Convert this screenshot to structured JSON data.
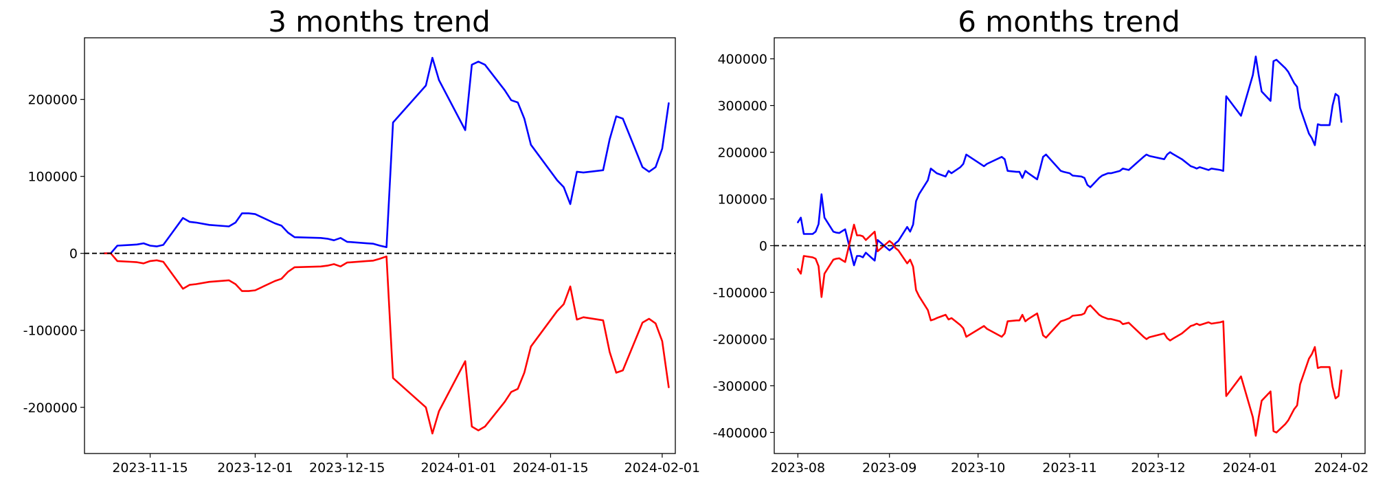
{
  "chart_data": [
    {
      "type": "line",
      "title": "3 months trend",
      "xlabel": "",
      "ylabel": "",
      "x_ticks": [
        "2023-11-15",
        "2023-12-01",
        "2023-12-15",
        "2024-01-01",
        "2024-01-15",
        "2024-02-01"
      ],
      "y_ticks": [
        -200000,
        -100000,
        0,
        100000,
        200000
      ],
      "xlim": [
        "2023-11-05",
        "2024-02-03"
      ],
      "ylim": [
        -260000,
        280000
      ],
      "baseline": 0,
      "grid": false,
      "series": [
        {
          "color": "#0000ff",
          "x": [
            "2023-11-08",
            "2023-11-09",
            "2023-11-10",
            "2023-11-12",
            "2023-11-13",
            "2023-11-14",
            "2023-11-15",
            "2023-11-16",
            "2023-11-17",
            "2023-11-20",
            "2023-11-21",
            "2023-11-22",
            "2023-11-24",
            "2023-11-27",
            "2023-11-28",
            "2023-11-29",
            "2023-11-30",
            "2023-12-01",
            "2023-12-04",
            "2023-12-05",
            "2023-12-06",
            "2023-12-07",
            "2023-12-11",
            "2023-12-12",
            "2023-12-13",
            "2023-12-14",
            "2023-12-15",
            "2023-12-18",
            "2023-12-19",
            "2023-12-20",
            "2023-12-21",
            "2023-12-22",
            "2023-12-27",
            "2023-12-28",
            "2023-12-29",
            "2024-01-02",
            "2024-01-03",
            "2024-01-04",
            "2024-01-05",
            "2024-01-08",
            "2024-01-09",
            "2024-01-10",
            "2024-01-11",
            "2024-01-12",
            "2024-01-16",
            "2024-01-17",
            "2024-01-18",
            "2024-01-19",
            "2024-01-20",
            "2024-01-23",
            "2024-01-24",
            "2024-01-25",
            "2024-01-26",
            "2024-01-29",
            "2024-01-30",
            "2024-01-31",
            "2024-02-01",
            "2024-02-02"
          ],
          "values": [
            0,
            0,
            10000,
            11000,
            11500,
            13000,
            10000,
            9000,
            11000,
            46000,
            41000,
            40000,
            37000,
            35000,
            40000,
            52000,
            52000,
            51000,
            39000,
            36000,
            27000,
            21000,
            20000,
            19000,
            17000,
            20000,
            15000,
            13000,
            12500,
            10000,
            8000,
            170000,
            218000,
            254000,
            225000,
            160000,
            245000,
            249000,
            245000,
            212000,
            199000,
            196000,
            175000,
            141000,
            95000,
            86000,
            64000,
            106000,
            105000,
            108000,
            148000,
            178000,
            175000,
            112000,
            106000,
            112000,
            136000,
            195000
          ]
        },
        {
          "color": "#ff0000",
          "x": [
            "2023-11-08",
            "2023-11-09",
            "2023-11-10",
            "2023-11-12",
            "2023-11-13",
            "2023-11-14",
            "2023-11-15",
            "2023-11-16",
            "2023-11-17",
            "2023-11-20",
            "2023-11-21",
            "2023-11-22",
            "2023-11-24",
            "2023-11-27",
            "2023-11-28",
            "2023-11-29",
            "2023-11-30",
            "2023-12-01",
            "2023-12-04",
            "2023-12-05",
            "2023-12-06",
            "2023-12-07",
            "2023-12-11",
            "2023-12-12",
            "2023-12-13",
            "2023-12-14",
            "2023-12-15",
            "2023-12-18",
            "2023-12-19",
            "2023-12-20",
            "2023-12-21",
            "2023-12-22",
            "2023-12-27",
            "2023-12-28",
            "2023-12-29",
            "2024-01-02",
            "2024-01-03",
            "2024-01-04",
            "2024-01-05",
            "2024-01-08",
            "2024-01-09",
            "2024-01-10",
            "2024-01-11",
            "2024-01-12",
            "2024-01-16",
            "2024-01-17",
            "2024-01-18",
            "2024-01-19",
            "2024-01-20",
            "2024-01-23",
            "2024-01-24",
            "2024-01-25",
            "2024-01-26",
            "2024-01-29",
            "2024-01-30",
            "2024-01-31",
            "2024-02-01",
            "2024-02-02"
          ],
          "values": [
            0,
            0,
            -10000,
            -11000,
            -11500,
            -13000,
            -10000,
            -9000,
            -11000,
            -46000,
            -41000,
            -40000,
            -37000,
            -35000,
            -40000,
            -49000,
            -49000,
            -48000,
            -36000,
            -33000,
            -24000,
            -18000,
            -17000,
            -16000,
            -14000,
            -17000,
            -12000,
            -10000,
            -9500,
            -7000,
            -4000,
            -162000,
            -200000,
            -234000,
            -205000,
            -140000,
            -225000,
            -230000,
            -225000,
            -193000,
            -180000,
            -176000,
            -155000,
            -121000,
            -75000,
            -66000,
            -43000,
            -86000,
            -83000,
            -87000,
            -128000,
            -155000,
            -152000,
            -90000,
            -85000,
            -91000,
            -114000,
            -174000
          ]
        }
      ]
    },
    {
      "type": "line",
      "title": "6 months trend",
      "xlabel": "",
      "ylabel": "",
      "x_ticks": [
        "2023-08",
        "2023-09",
        "2023-10",
        "2023-11",
        "2023-12",
        "2024-01",
        "2024-02"
      ],
      "y_ticks": [
        -400000,
        -300000,
        -200000,
        -100000,
        0,
        100000,
        200000,
        300000,
        400000
      ],
      "xlim": [
        "2023-07-24",
        "2024-02-09"
      ],
      "ylim": [
        -445000,
        445000
      ],
      "baseline": 0,
      "grid": false,
      "series": [
        {
          "color": "#0000ff",
          "x": [
            "2023-08-01",
            "2023-08-02",
            "2023-08-03",
            "2023-08-06",
            "2023-08-07",
            "2023-08-08",
            "2023-08-09",
            "2023-08-10",
            "2023-08-13",
            "2023-08-14",
            "2023-08-15",
            "2023-08-16",
            "2023-08-17",
            "2023-08-20",
            "2023-08-21",
            "2023-08-22",
            "2023-08-23",
            "2023-08-24",
            "2023-08-27",
            "2023-08-28",
            "2023-09-01",
            "2023-09-02",
            "2023-09-03",
            "2023-09-04",
            "2023-09-07",
            "2023-09-08",
            "2023-09-09",
            "2023-09-10",
            "2023-09-11",
            "2023-09-14",
            "2023-09-15",
            "2023-09-16",
            "2023-09-17",
            "2023-09-20",
            "2023-09-21",
            "2023-09-22",
            "2023-09-25",
            "2023-09-26",
            "2023-09-27",
            "2023-10-03",
            "2023-10-04",
            "2023-10-09",
            "2023-10-10",
            "2023-10-11",
            "2023-10-14",
            "2023-10-15",
            "2023-10-16",
            "2023-10-17",
            "2023-10-18",
            "2023-10-21",
            "2023-10-22",
            "2023-10-23",
            "2023-10-24",
            "2023-10-29",
            "2023-10-30",
            "2023-11-01",
            "2023-11-02",
            "2023-11-05",
            "2023-11-06",
            "2023-11-07",
            "2023-11-08",
            "2023-11-11",
            "2023-11-12",
            "2023-11-14",
            "2023-11-15",
            "2023-11-18",
            "2023-11-19",
            "2023-11-21",
            "2023-11-26",
            "2023-11-27",
            "2023-11-28",
            "2023-12-03",
            "2023-12-04",
            "2023-12-05",
            "2023-12-06",
            "2023-12-09",
            "2023-12-12",
            "2023-12-13",
            "2023-12-14",
            "2023-12-15",
            "2023-12-18",
            "2023-12-19",
            "2023-12-22",
            "2023-12-23",
            "2023-12-24",
            "2023-12-29",
            "2024-01-02",
            "2024-01-03",
            "2024-01-04",
            "2024-01-05",
            "2024-01-08",
            "2024-01-09",
            "2024-01-10",
            "2024-01-13",
            "2024-01-14",
            "2024-01-16",
            "2024-01-17",
            "2024-01-18",
            "2024-01-21",
            "2024-01-22",
            "2024-01-23",
            "2024-01-24",
            "2024-01-25",
            "2024-01-28",
            "2024-01-29",
            "2024-01-30",
            "2024-01-31",
            "2024-02-01"
          ],
          "values": [
            50000,
            60000,
            25000,
            25000,
            30000,
            46000,
            110000,
            60000,
            30000,
            28000,
            27000,
            31000,
            35000,
            -42000,
            -22000,
            -22000,
            -25000,
            -15000,
            -32000,
            12000,
            -10000,
            -5000,
            5000,
            10000,
            40000,
            30000,
            45000,
            95000,
            110000,
            140000,
            165000,
            160000,
            155000,
            148000,
            160000,
            155000,
            168000,
            175000,
            195000,
            170000,
            175000,
            190000,
            185000,
            160000,
            158000,
            158000,
            145000,
            160000,
            155000,
            142000,
            165000,
            190000,
            195000,
            160000,
            158000,
            155000,
            150000,
            148000,
            145000,
            130000,
            125000,
            145000,
            150000,
            155000,
            155000,
            160000,
            165000,
            162000,
            190000,
            195000,
            192000,
            185000,
            195000,
            200000,
            196000,
            185000,
            170000,
            168000,
            165000,
            168000,
            162000,
            165000,
            162000,
            160000,
            320000,
            278000,
            365000,
            405000,
            365000,
            330000,
            310000,
            395000,
            398000,
            380000,
            372000,
            348000,
            340000,
            295000,
            240000,
            230000,
            215000,
            260000,
            258000,
            258000,
            300000,
            325000,
            320000,
            265000
          ]
        },
        {
          "color": "#ff0000",
          "x": [
            "2023-08-01",
            "2023-08-02",
            "2023-08-03",
            "2023-08-06",
            "2023-08-07",
            "2023-08-08",
            "2023-08-09",
            "2023-08-10",
            "2023-08-13",
            "2023-08-14",
            "2023-08-15",
            "2023-08-16",
            "2023-08-17",
            "2023-08-20",
            "2023-08-21",
            "2023-08-22",
            "2023-08-23",
            "2023-08-24",
            "2023-08-27",
            "2023-08-28",
            "2023-09-01",
            "2023-09-02",
            "2023-09-03",
            "2023-09-04",
            "2023-09-07",
            "2023-09-08",
            "2023-09-09",
            "2023-09-10",
            "2023-09-11",
            "2023-09-14",
            "2023-09-15",
            "2023-09-16",
            "2023-09-17",
            "2023-09-20",
            "2023-09-21",
            "2023-09-22",
            "2023-09-25",
            "2023-09-26",
            "2023-09-27",
            "2023-10-03",
            "2023-10-04",
            "2023-10-09",
            "2023-10-10",
            "2023-10-11",
            "2023-10-14",
            "2023-10-15",
            "2023-10-16",
            "2023-10-17",
            "2023-10-18",
            "2023-10-21",
            "2023-10-22",
            "2023-10-23",
            "2023-10-24",
            "2023-10-29",
            "2023-10-30",
            "2023-11-01",
            "2023-11-02",
            "2023-11-05",
            "2023-11-06",
            "2023-11-07",
            "2023-11-08",
            "2023-11-11",
            "2023-11-12",
            "2023-11-14",
            "2023-11-15",
            "2023-11-18",
            "2023-11-19",
            "2023-11-21",
            "2023-11-26",
            "2023-11-27",
            "2023-11-28",
            "2023-12-03",
            "2023-12-04",
            "2023-12-05",
            "2023-12-06",
            "2023-12-09",
            "2023-12-12",
            "2023-12-13",
            "2023-12-14",
            "2023-12-15",
            "2023-12-18",
            "2023-12-19",
            "2023-12-22",
            "2023-12-23",
            "2023-12-24",
            "2023-12-29",
            "2024-01-02",
            "2024-01-03",
            "2024-01-04",
            "2024-01-05",
            "2024-01-08",
            "2024-01-09",
            "2024-01-10",
            "2024-01-13",
            "2024-01-14",
            "2024-01-16",
            "2024-01-17",
            "2024-01-18",
            "2024-01-21",
            "2024-01-22",
            "2024-01-23",
            "2024-01-24",
            "2024-01-25",
            "2024-01-28",
            "2024-01-29",
            "2024-01-30",
            "2024-01-31",
            "2024-02-01"
          ],
          "values": [
            -50000,
            -60000,
            -22000,
            -25000,
            -28000,
            -44000,
            -110000,
            -60000,
            -30000,
            -28000,
            -27000,
            -31000,
            -35000,
            45000,
            22000,
            22000,
            20000,
            12000,
            30000,
            -12000,
            10000,
            5000,
            -5000,
            -10000,
            -38000,
            -30000,
            -45000,
            -95000,
            -108000,
            -138000,
            -160000,
            -158000,
            -155000,
            -148000,
            -158000,
            -155000,
            -170000,
            -177000,
            -195000,
            -172000,
            -178000,
            -195000,
            -188000,
            -162000,
            -160000,
            -160000,
            -148000,
            -162000,
            -157000,
            -145000,
            -168000,
            -192000,
            -197000,
            -162000,
            -160000,
            -155000,
            -150000,
            -148000,
            -145000,
            -132000,
            -128000,
            -148000,
            -152000,
            -157000,
            -157000,
            -162000,
            -168000,
            -165000,
            -195000,
            -200000,
            -196000,
            -188000,
            -198000,
            -203000,
            -199000,
            -188000,
            -172000,
            -170000,
            -167000,
            -170000,
            -164000,
            -167000,
            -164000,
            -162000,
            -322000,
            -280000,
            -367000,
            -407000,
            -367000,
            -332000,
            -312000,
            -397000,
            -400000,
            -382000,
            -374000,
            -350000,
            -342000,
            -297000,
            -242000,
            -232000,
            -217000,
            -262000,
            -260000,
            -260000,
            -302000,
            -327000,
            -322000,
            -267000
          ]
        }
      ]
    }
  ]
}
